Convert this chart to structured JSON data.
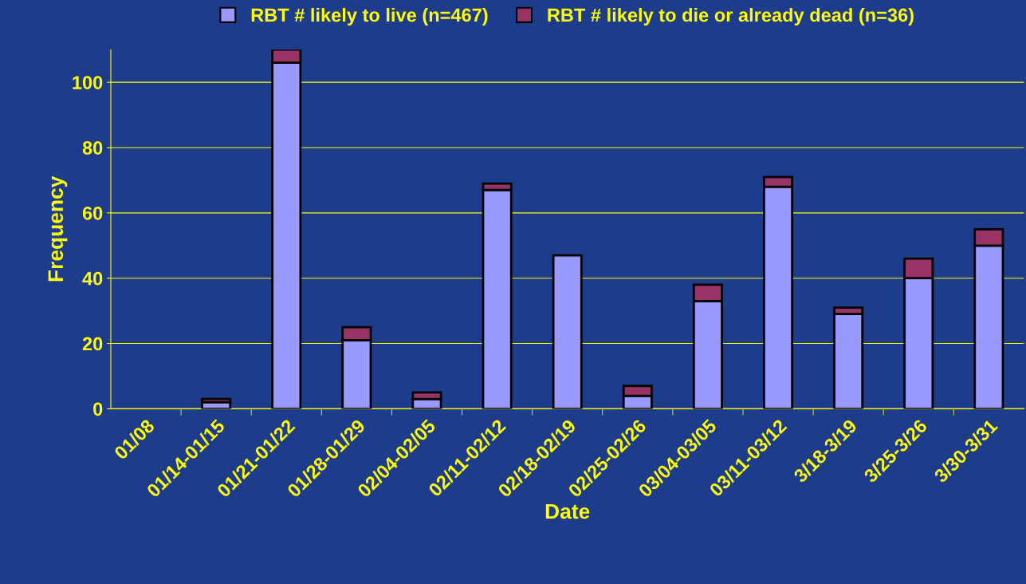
{
  "chart_data": {
    "type": "bar",
    "stacked": true,
    "xlabel": "Date",
    "ylabel": "Frequency",
    "categories": [
      "01/08",
      "01/14-01/15",
      "01/21-01/22",
      "01/28-01/29",
      "02/04-02/05",
      "02/11-02/12",
      "02/18-02/19",
      "02/25-02/26",
      "03/04-03/05",
      "03/11-03/12",
      "3/18-3/19",
      "3/25-3/26",
      "3/30-3/31"
    ],
    "series": [
      {
        "name": "RBT # likely to live (n=467)",
        "color": "#9999ff",
        "values": [
          null,
          2,
          106,
          21,
          3,
          67,
          47,
          4,
          33,
          68,
          29,
          40,
          50
        ]
      },
      {
        "name": "RBT # likely to die or already dead (n=36)",
        "color": "#993366",
        "values": [
          null,
          1,
          4,
          4,
          2,
          2,
          null,
          3,
          5,
          3,
          2,
          6,
          5
        ]
      }
    ],
    "ylim": [
      0,
      110
    ],
    "yticks": [
      0,
      20,
      40,
      60,
      80,
      100
    ],
    "grid": "y",
    "legend": "top"
  }
}
